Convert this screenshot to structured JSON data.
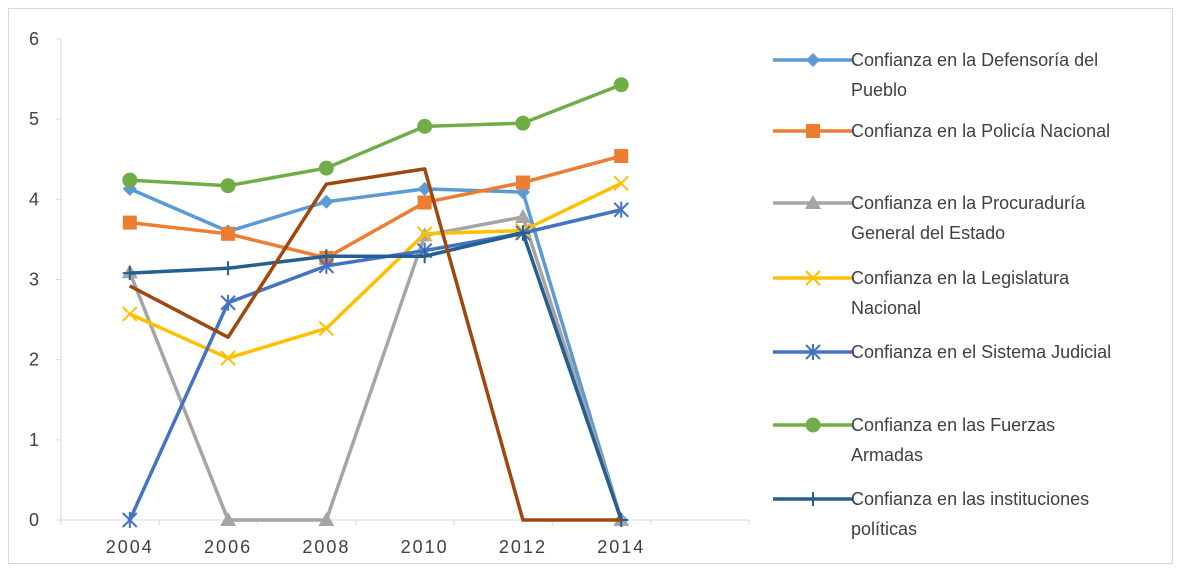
{
  "chart_data": {
    "type": "line",
    "title": "",
    "xlabel": "",
    "ylabel": "",
    "x": [
      "2004",
      "2006",
      "2008",
      "2010",
      "2012",
      "2014"
    ],
    "ylim": [
      0,
      6
    ],
    "yticks": [
      0,
      1,
      2,
      3,
      4,
      5,
      6
    ],
    "grid": false,
    "legend_position": "right",
    "series": [
      {
        "name": "Confianza en la Defensoría del Pueblo",
        "legend_lines": [
          "Confianza en la Defensoría del",
          "Pueblo"
        ],
        "color": "#5B9BD5",
        "marker": "diamond",
        "values": [
          4.13,
          3.6,
          3.97,
          4.13,
          4.09,
          0
        ]
      },
      {
        "name": "Confianza en la Policía Nacional",
        "legend_lines": [
          "Confianza en la Policía Nacional"
        ],
        "color": "#ED7D31",
        "marker": "square",
        "values": [
          3.71,
          3.57,
          3.27,
          3.96,
          4.21,
          4.54
        ]
      },
      {
        "name": "Confianza en la Procuraduría General del Estado",
        "legend_lines": [
          "Confianza en la Procuraduría",
          "General del Estado"
        ],
        "color": "#A5A5A5",
        "marker": "triangle",
        "values": [
          3.09,
          0,
          0,
          3.55,
          3.78,
          0
        ]
      },
      {
        "name": "Confianza en la Legislatura Nacional",
        "legend_lines": [
          "Confianza en la Legislatura",
          "Nacional"
        ],
        "color": "#FFC000",
        "marker": "x",
        "values": [
          2.57,
          2.02,
          2.39,
          3.57,
          3.61,
          4.2
        ]
      },
      {
        "name": "Confianza en el Sistema Judicial",
        "legend_lines": [
          "Confianza en el Sistema Judicial"
        ],
        "color": "#4472C4",
        "marker": "star",
        "values": [
          0,
          2.71,
          3.17,
          3.36,
          3.58,
          3.87
        ]
      },
      {
        "name": "Confianza en las Fuerzas Armadas",
        "legend_lines": [
          "Confianza en las Fuerzas",
          "Armadas"
        ],
        "color": "#70AD47",
        "marker": "circle",
        "values": [
          4.24,
          4.17,
          4.39,
          4.91,
          4.95,
          5.43
        ]
      },
      {
        "name": "Confianza en las instituciones políticas",
        "legend_lines": [
          "Confianza en las instituciones",
          "políticas"
        ],
        "color": "#255E91",
        "marker": "plus",
        "values": [
          3.08,
          3.14,
          3.29,
          3.29,
          3.58,
          0
        ]
      },
      {
        "name": "",
        "legend_lines": [],
        "color": "#9E480E",
        "marker": "none",
        "values": [
          2.92,
          2.28,
          4.19,
          4.38,
          0,
          0
        ]
      }
    ]
  }
}
